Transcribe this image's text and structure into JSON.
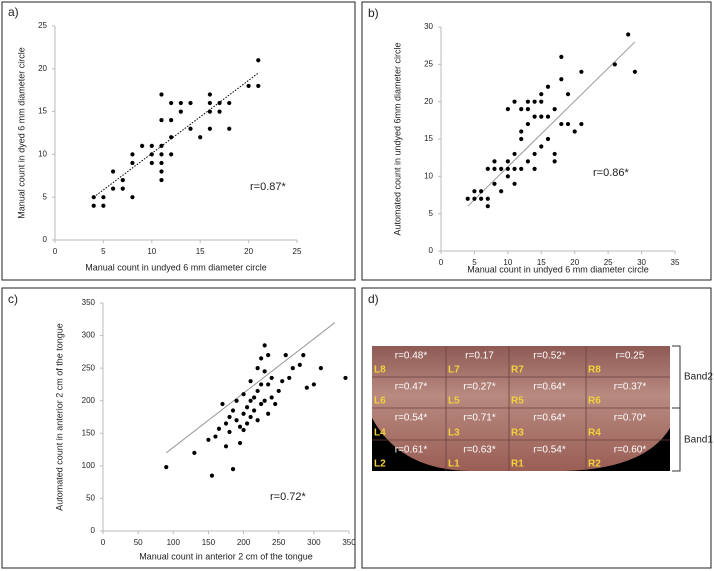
{
  "chart_data": [
    {
      "type": "scatter",
      "panel_label": "a)",
      "xlabel": "Manual count in undyed 6 mm  diameter circle",
      "ylabel": "Manual count in dyed 6 mm diameter circle",
      "annotation": "r=0.87*",
      "xlim": [
        0,
        25
      ],
      "ylim": [
        0,
        25
      ],
      "xticks": [
        0,
        5,
        10,
        15,
        20,
        25
      ],
      "yticks": [
        0,
        5,
        10,
        15,
        20,
        25
      ],
      "color": "#000000",
      "trendline_color": "#000000",
      "trendline_dashed": true,
      "trendline": {
        "x": [
          4,
          21
        ],
        "values": [
          5,
          19.5
        ]
      },
      "x": [
        4,
        4,
        5,
        5,
        6,
        6,
        7,
        7,
        8,
        8,
        8,
        9,
        10,
        10,
        10,
        11,
        11,
        11,
        11,
        11,
        11,
        11,
        12,
        12,
        12,
        12,
        13,
        13,
        14,
        14,
        15,
        16,
        16,
        16,
        16,
        17,
        17,
        18,
        18,
        20,
        21,
        21
      ],
      "values": [
        4,
        5,
        4,
        5,
        6,
        8,
        6,
        7,
        5,
        9,
        10,
        11,
        9,
        10,
        11,
        7,
        8,
        9,
        10,
        11,
        14,
        17,
        10,
        12,
        14,
        16,
        15,
        16,
        13,
        16,
        12,
        13,
        15,
        16,
        17,
        15,
        16,
        13,
        16,
        18,
        18,
        21
      ]
    },
    {
      "type": "scatter",
      "panel_label": "b)",
      "xlabel": "Manual count in undyed 6 mm  diameter circle",
      "ylabel": "Automated count in undyed  6mm diameter circle",
      "annotation": "r=0.86*",
      "xlim": [
        0,
        35
      ],
      "ylim": [
        0,
        30
      ],
      "xticks": [
        0,
        5,
        10,
        15,
        20,
        25,
        30,
        35
      ],
      "yticks": [
        0,
        5,
        10,
        15,
        20,
        25,
        30
      ],
      "color": "#000000",
      "trendline_color": "#999999",
      "trendline_dashed": false,
      "trendline": {
        "x": [
          4,
          29
        ],
        "values": [
          6,
          28
        ]
      },
      "x": [
        4,
        5,
        5,
        6,
        6,
        7,
        7,
        7,
        8,
        8,
        8,
        9,
        9,
        10,
        10,
        10,
        10,
        11,
        11,
        11,
        11,
        12,
        12,
        12,
        12,
        13,
        13,
        13,
        13,
        14,
        14,
        14,
        14,
        15,
        15,
        15,
        15,
        16,
        16,
        16,
        17,
        17,
        17,
        18,
        18,
        18,
        19,
        19,
        20,
        21,
        21,
        26,
        28,
        29
      ],
      "values": [
        7,
        7,
        8,
        7,
        8,
        6,
        7,
        11,
        9,
        11,
        12,
        11,
        8,
        10,
        11,
        12,
        19,
        9,
        11,
        13,
        20,
        11,
        15,
        16,
        19,
        12,
        17,
        19,
        20,
        11,
        13,
        18,
        20,
        14,
        18,
        21,
        20,
        15,
        18,
        22,
        12,
        13,
        19,
        17,
        23,
        26,
        17,
        21,
        16,
        17,
        24,
        25,
        29,
        24
      ]
    },
    {
      "type": "scatter",
      "panel_label": "c)",
      "xlabel": "Manual count in anterior 2 cm of the tongue",
      "ylabel": "Automated count in anterior 2 cm of the tongue",
      "annotation": "r=0.72*",
      "xlim": [
        0,
        350
      ],
      "ylim": [
        0,
        350
      ],
      "xticks": [
        0,
        50,
        100,
        150,
        200,
        250,
        300,
        350
      ],
      "yticks": [
        0,
        50,
        100,
        150,
        200,
        250,
        300,
        350
      ],
      "color": "#000000",
      "trendline_color": "#999999",
      "trendline_dashed": false,
      "trendline": {
        "x": [
          90,
          330
        ],
        "values": [
          120,
          320
        ]
      },
      "x": [
        90,
        130,
        150,
        155,
        160,
        165,
        170,
        175,
        175,
        180,
        180,
        185,
        185,
        190,
        190,
        195,
        195,
        200,
        200,
        200,
        205,
        205,
        210,
        210,
        210,
        215,
        215,
        220,
        220,
        220,
        225,
        225,
        225,
        230,
        230,
        230,
        235,
        235,
        235,
        240,
        240,
        245,
        250,
        255,
        260,
        265,
        270,
        280,
        285,
        290,
        300,
        310,
        345
      ],
      "values": [
        98,
        120,
        140,
        85,
        145,
        157,
        195,
        130,
        165,
        152,
        175,
        95,
        185,
        170,
        200,
        135,
        160,
        155,
        180,
        210,
        165,
        190,
        175,
        200,
        230,
        185,
        205,
        170,
        215,
        250,
        195,
        225,
        265,
        200,
        245,
        285,
        180,
        225,
        270,
        205,
        235,
        195,
        215,
        230,
        270,
        235,
        250,
        255,
        270,
        220,
        225,
        250,
        235
      ]
    }
  ],
  "panel_d": {
    "panel_label": "d)",
    "band_top": "Band2",
    "band_bottom": "Band1",
    "cells": [
      [
        {
          "label": "L8",
          "r": "r=0.48*"
        },
        {
          "label": "L7",
          "r": "r=0.17"
        },
        {
          "label": "R7",
          "r": "r=0.52*"
        },
        {
          "label": "R8",
          "r": "r=0.25"
        }
      ],
      [
        {
          "label": "L6",
          "r": "r=0.47*"
        },
        {
          "label": "L5",
          "r": "r=0.27*"
        },
        {
          "label": "R5",
          "r": "r=0.64*"
        },
        {
          "label": "R6",
          "r": "r=0.37*"
        }
      ],
      [
        {
          "label": "L4",
          "r": "r=0.54*"
        },
        {
          "label": "L3",
          "r": "r=0.71*"
        },
        {
          "label": "R3",
          "r": "r=0.64*"
        },
        {
          "label": "R4",
          "r": "r=0.70*"
        }
      ],
      [
        {
          "label": "L2",
          "r": "r=0.61*"
        },
        {
          "label": "L1",
          "r": "r=0.63*"
        },
        {
          "label": "R1",
          "r": "r=0.54*"
        },
        {
          "label": "R2",
          "r": "r=0.60*"
        }
      ]
    ]
  }
}
